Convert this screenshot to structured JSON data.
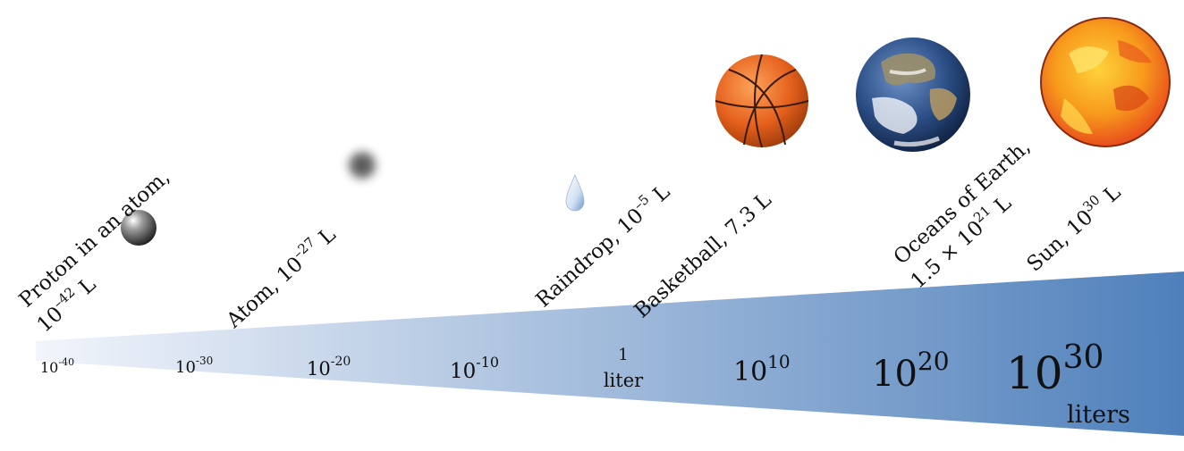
{
  "colors": {
    "wedge_start": "#f2f5fb",
    "wedge_end": "#4f80bb",
    "text": "#111111"
  },
  "scale": {
    "ticks": [
      {
        "base": "10",
        "exp": "-40"
      },
      {
        "base": "10",
        "exp": "-30"
      },
      {
        "base": "10",
        "exp": "-20"
      },
      {
        "base": "10",
        "exp": "-10"
      },
      {
        "line1": "1",
        "line2": "liter"
      },
      {
        "base": "10",
        "exp": "10"
      },
      {
        "base": "10",
        "exp": "20"
      },
      {
        "base": "10",
        "exp": "30",
        "unit": "liters"
      }
    ]
  },
  "objects": [
    {
      "name": "Proton in an atom,",
      "line2_base": "10",
      "line2_exp": "–42",
      "line2_unit": " L",
      "icon": "sphere-icon"
    },
    {
      "name": "Atom, ",
      "base": "10",
      "exp": "–27",
      "unit": " L",
      "icon": "atom-blur-icon"
    },
    {
      "name": "Raindrop, ",
      "base": "10",
      "exp": "–5",
      "unit": " L",
      "icon": "raindrop-icon"
    },
    {
      "name": "Basketball, 7.3 L",
      "icon": "basketball-icon"
    },
    {
      "name": "Oceans of Earth,",
      "line2_base": "1.5 × 10",
      "line2_exp": "21",
      "line2_unit": " L",
      "icon": "earth-icon"
    },
    {
      "name": "Sun, ",
      "base": "10",
      "exp": "30",
      "unit": " L",
      "icon": "sun-icon"
    }
  ]
}
